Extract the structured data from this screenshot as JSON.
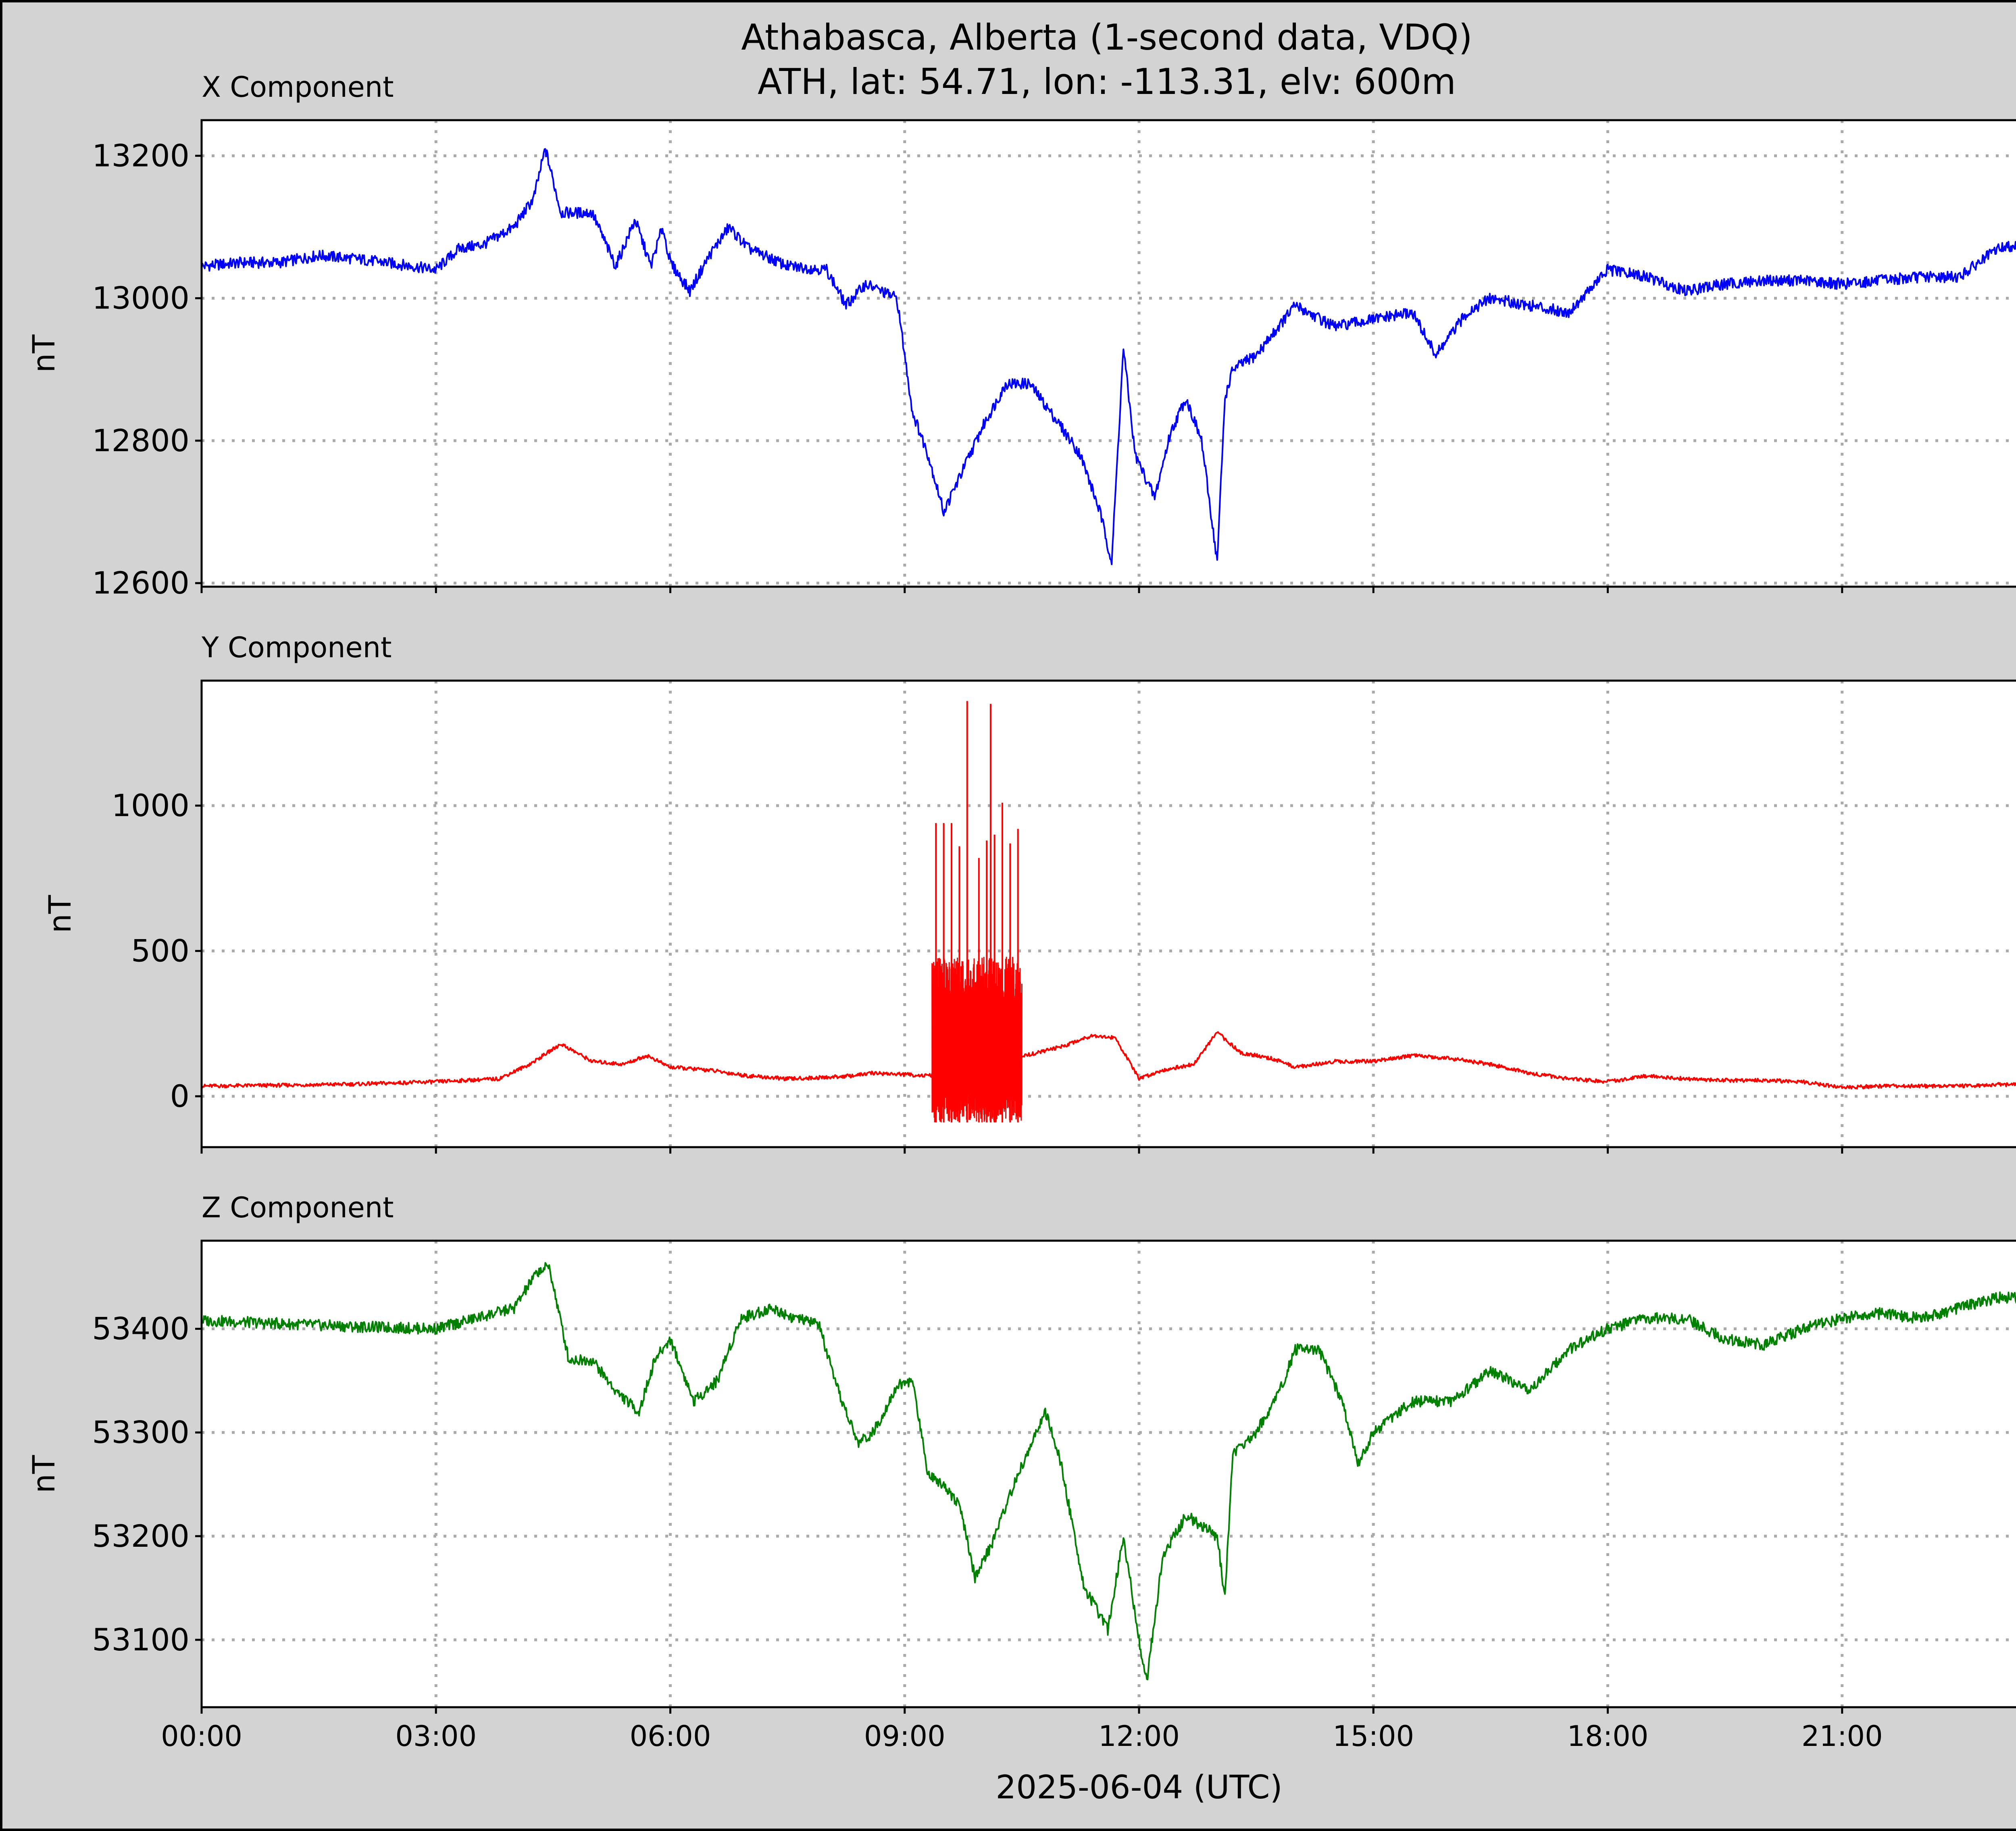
{
  "figure": {
    "title_line1": "Athabasca, Alberta (1-second data, VDQ)",
    "title_line2": "ATH, lat: 54.71, lon: -113.31, elv: 600m",
    "xlabel": "2025-06-04 (UTC)",
    "x_tick_labels": [
      "00:00",
      "03:00",
      "06:00",
      "09:00",
      "12:00",
      "15:00",
      "18:00",
      "21:00"
    ],
    "background_color": "#d3d3d3",
    "grid_color": "#aaaaaa"
  },
  "chart_data": [
    {
      "type": "line",
      "title": "X Component",
      "ylabel": "nT",
      "color": "#0000ff",
      "grid": true,
      "xlim_hours": [
        0,
        24
      ],
      "ylim": [
        12595,
        13250
      ],
      "yticks": [
        12600,
        12800,
        13000,
        13200
      ],
      "x_hours": [
        0.0,
        0.5,
        1.0,
        1.5,
        2.0,
        2.5,
        3.0,
        3.3,
        3.6,
        4.0,
        4.25,
        4.4,
        4.6,
        5.0,
        5.3,
        5.55,
        5.75,
        5.9,
        6.0,
        6.25,
        6.5,
        6.75,
        7.0,
        7.5,
        8.0,
        8.25,
        8.5,
        8.9,
        9.1,
        9.3,
        9.5,
        9.75,
        10.0,
        10.3,
        10.6,
        11.0,
        11.25,
        11.5,
        11.65,
        11.8,
        11.95,
        12.2,
        12.4,
        12.6,
        12.8,
        13.0,
        13.1,
        13.2,
        13.5,
        14.0,
        14.5,
        15.0,
        15.5,
        15.8,
        16.2,
        16.5,
        17.0,
        17.5,
        18.0,
        18.5,
        19.0,
        19.5,
        20.0,
        20.5,
        21.0,
        21.5,
        22.0,
        22.5,
        23.0,
        23.5,
        24.0
      ],
      "values": [
        13045,
        13050,
        13050,
        13060,
        13055,
        13048,
        13040,
        13070,
        13075,
        13100,
        13140,
        13210,
        13120,
        13120,
        13045,
        13110,
        13045,
        13100,
        13050,
        13010,
        13060,
        13100,
        13070,
        13045,
        13040,
        12990,
        13020,
        13000,
        12840,
        12780,
        12700,
        12760,
        12820,
        12880,
        12880,
        12820,
        12780,
        12700,
        12630,
        12930,
        12780,
        12720,
        12810,
        12860,
        12800,
        12630,
        12860,
        12900,
        12920,
        12990,
        12960,
        12970,
        12980,
        12920,
        12980,
        13000,
        12990,
        12980,
        13040,
        13030,
        13010,
        13020,
        13025,
        13025,
        13020,
        13025,
        13030,
        13030,
        13070,
        13080,
        13070
      ]
    },
    {
      "type": "line",
      "title": "Y Component",
      "ylabel": "nT",
      "color": "#ff0000",
      "grid": true,
      "xlim_hours": [
        0,
        24
      ],
      "ylim": [
        -175,
        1430
      ],
      "yticks": [
        0,
        500,
        1000
      ],
      "x_hours": [
        0.0,
        1.0,
        2.0,
        3.0,
        3.8,
        4.2,
        4.6,
        5.0,
        5.4,
        5.7,
        6.0,
        6.5,
        7.0,
        7.5,
        8.0,
        8.3,
        8.6,
        9.0,
        9.3,
        10.7,
        11.0,
        11.4,
        11.7,
        12.0,
        12.3,
        12.7,
        13.0,
        13.3,
        13.7,
        14.0,
        14.5,
        15.0,
        15.5,
        16.0,
        16.5,
        17.0,
        17.5,
        18.0,
        18.5,
        19.0,
        19.5,
        20.0,
        20.5,
        21.0,
        21.5,
        22.0,
        22.5,
        23.0,
        23.5,
        24.0
      ],
      "values": [
        35,
        38,
        42,
        50,
        60,
        110,
        180,
        120,
        110,
        140,
        100,
        90,
        70,
        60,
        65,
        70,
        80,
        75,
        70,
        150,
        170,
        210,
        200,
        60,
        90,
        110,
        220,
        150,
        130,
        100,
        120,
        120,
        140,
        130,
        110,
        80,
        60,
        50,
        70,
        60,
        55,
        55,
        50,
        30,
        35,
        35,
        35,
        40,
        40,
        42
      ],
      "spike_burst": {
        "x_start_hours": 9.35,
        "x_end_hours": 10.5,
        "baseline_low": -90,
        "baseline_high": 480,
        "peaks_x_hours": [
          9.4,
          9.5,
          9.6,
          9.7,
          9.8,
          9.95,
          10.05,
          10.1,
          10.15,
          10.25,
          10.35,
          10.45
        ],
        "peaks_values": [
          940,
          940,
          940,
          860,
          1360,
          820,
          880,
          1350,
          900,
          1010,
          870,
          920
        ]
      }
    },
    {
      "type": "line",
      "title": "Z Component",
      "ylabel": "nT",
      "color": "#008000",
      "grid": true,
      "xlim_hours": [
        0,
        24
      ],
      "ylim": [
        53035,
        53485
      ],
      "yticks": [
        53100,
        53200,
        53300,
        53400
      ],
      "x_hours": [
        0.0,
        1.0,
        2.0,
        3.0,
        3.5,
        4.0,
        4.3,
        4.45,
        4.7,
        5.0,
        5.3,
        5.6,
        5.8,
        6.0,
        6.3,
        6.6,
        6.9,
        7.3,
        7.6,
        7.9,
        8.1,
        8.4,
        8.6,
        8.9,
        9.1,
        9.3,
        9.5,
        9.7,
        9.9,
        10.1,
        10.4,
        10.8,
        11.0,
        11.3,
        11.6,
        11.8,
        12.0,
        12.1,
        12.3,
        12.6,
        13.0,
        13.1,
        13.2,
        13.5,
        13.8,
        14.0,
        14.3,
        14.6,
        14.8,
        15.0,
        15.5,
        16.0,
        16.5,
        17.0,
        17.5,
        18.0,
        18.5,
        19.0,
        19.5,
        20.0,
        20.5,
        21.0,
        21.5,
        22.0,
        22.5,
        23.0,
        23.5,
        24.0
      ],
      "values": [
        53408,
        53405,
        53402,
        53400,
        53410,
        53420,
        53455,
        53460,
        53370,
        53370,
        53340,
        53320,
        53370,
        53390,
        53330,
        53350,
        53410,
        53420,
        53410,
        53405,
        53350,
        53290,
        53300,
        53345,
        53350,
        53260,
        53250,
        53230,
        53160,
        53190,
        53250,
        53320,
        53270,
        53150,
        53110,
        53200,
        53100,
        53060,
        53180,
        53220,
        53200,
        53140,
        53280,
        53300,
        53340,
        53380,
        53380,
        53330,
        53270,
        53300,
        53330,
        53330,
        53360,
        53340,
        53380,
        53400,
        53410,
        53410,
        53390,
        53385,
        53400,
        53410,
        53415,
        53410,
        53420,
        53430,
        53430,
        53420
      ]
    }
  ]
}
